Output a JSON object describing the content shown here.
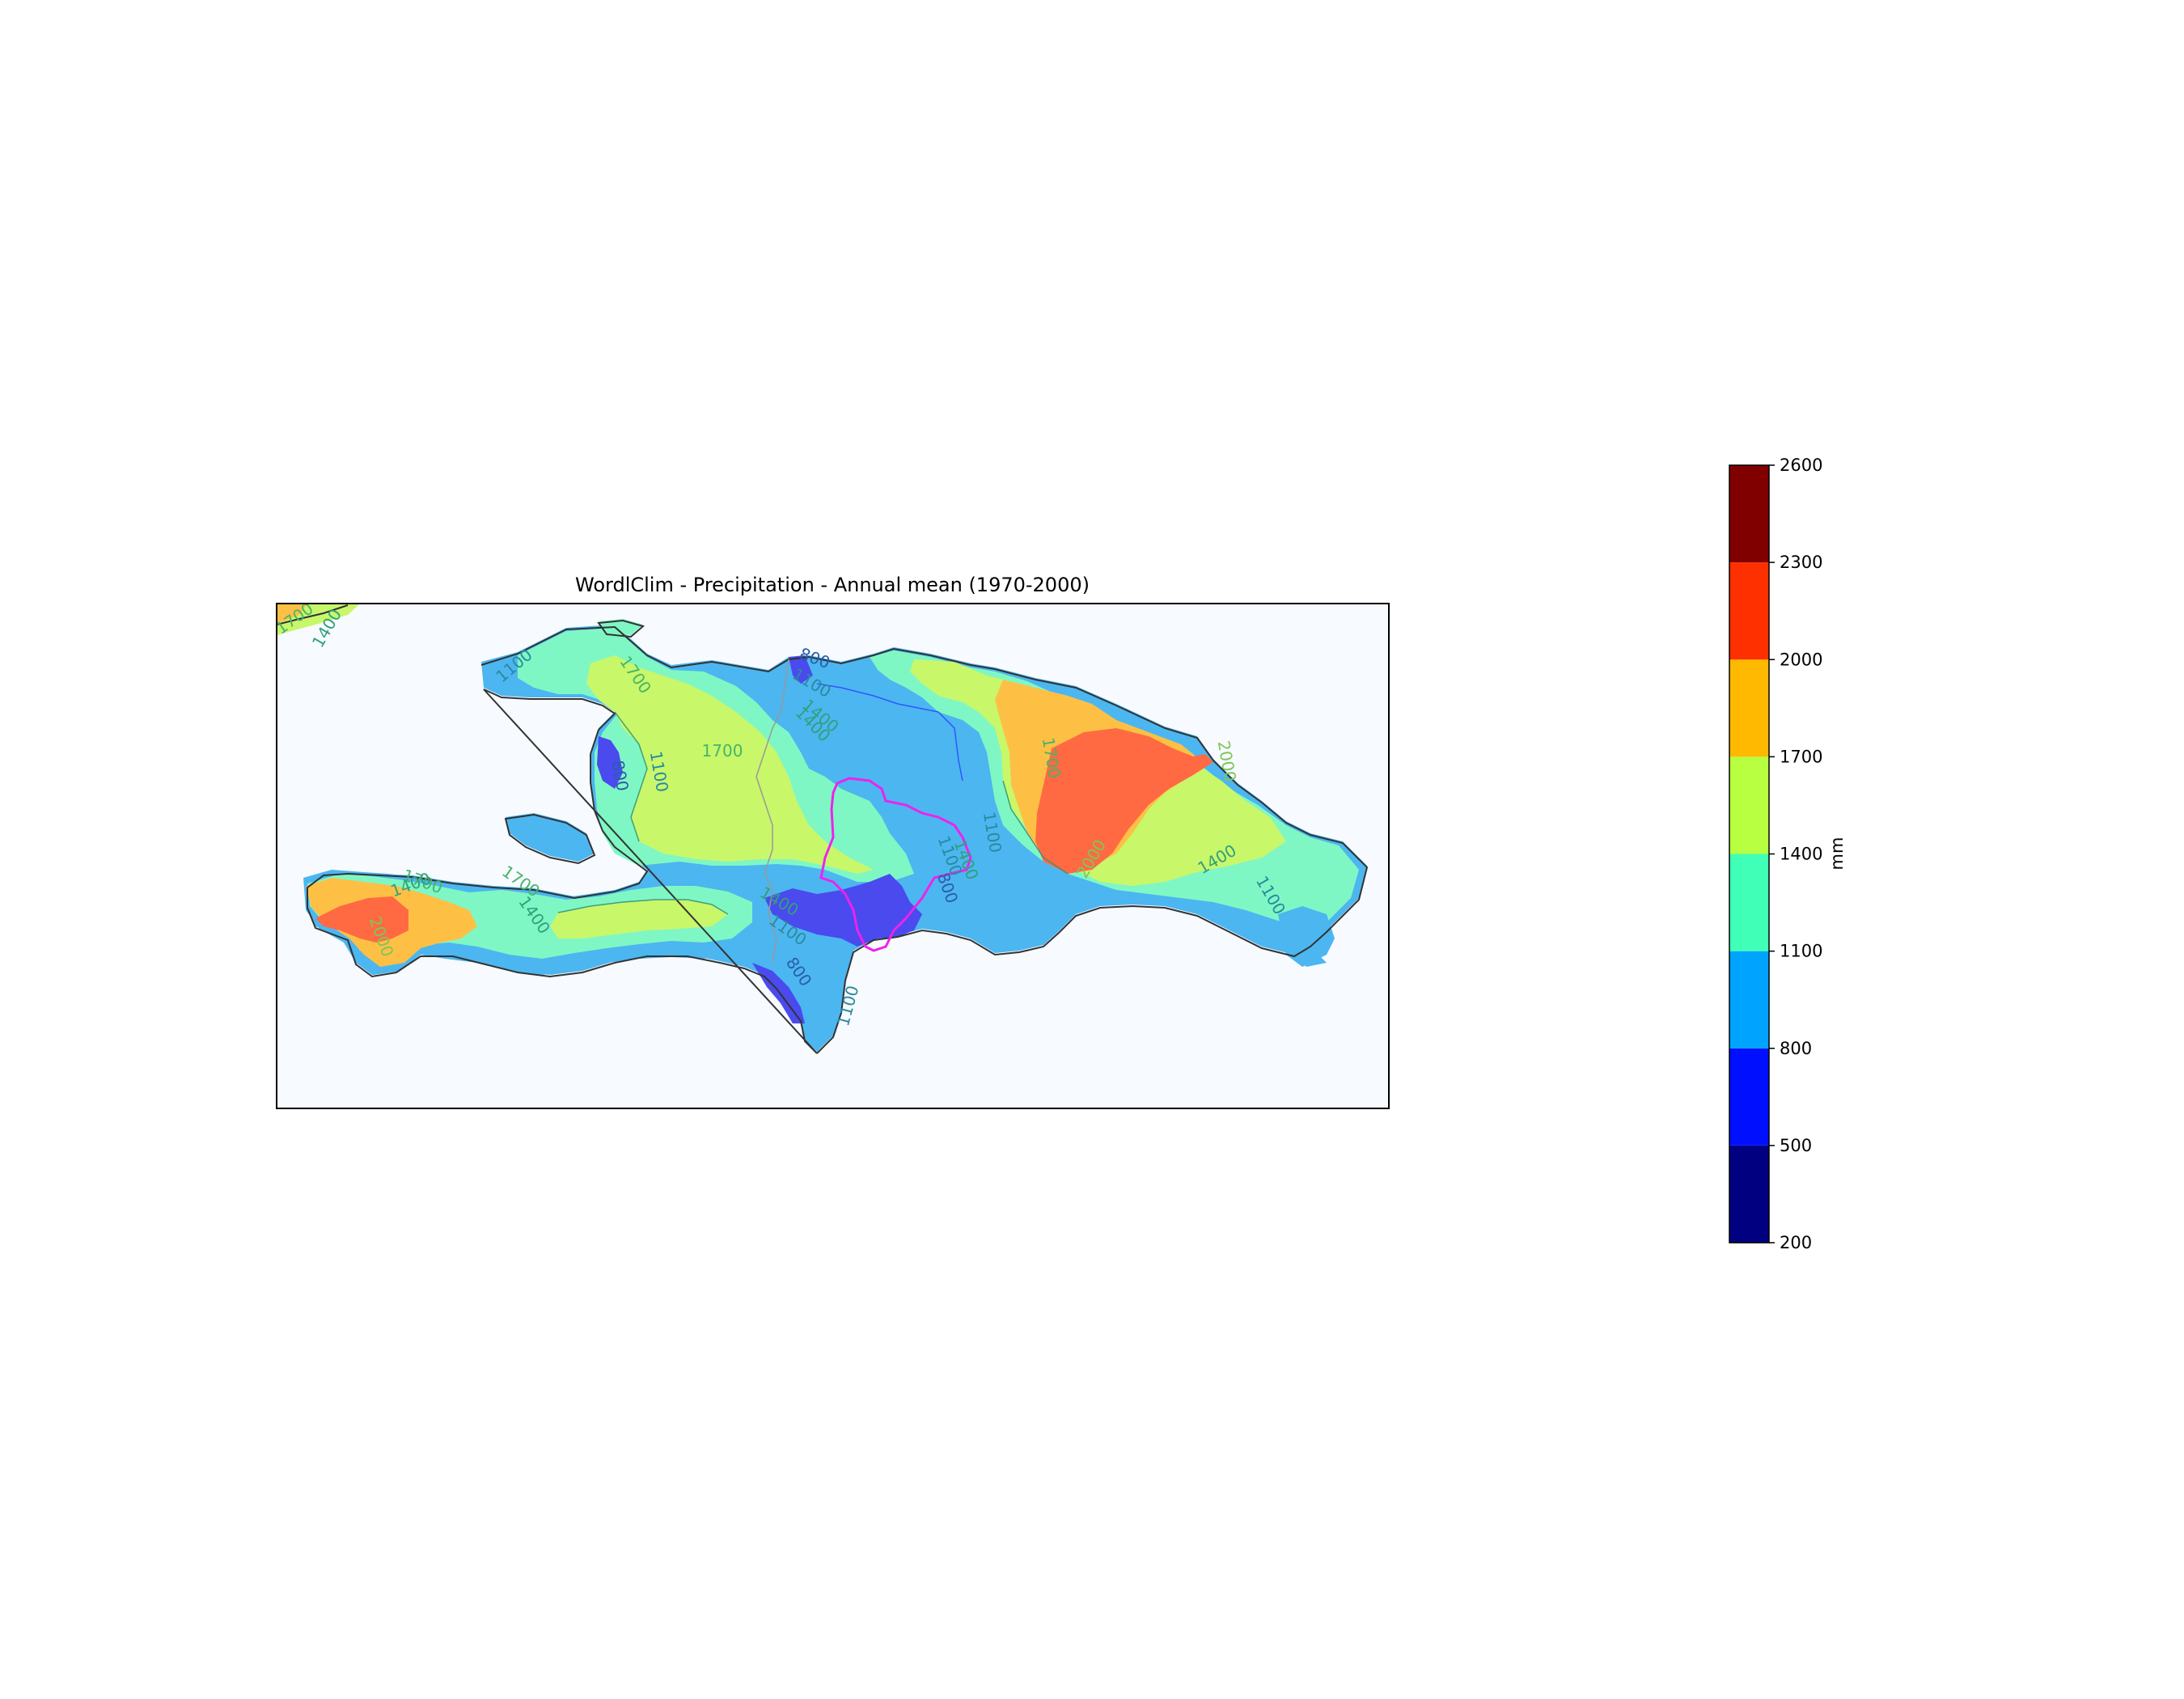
{
  "map": {
    "title": "WordlClim - Precipitation - Annual mean (1970-2000)",
    "background_color": "#f7fafe",
    "contour_labels": [
      {
        "text": "1700",
        "cls": "l1700"
      },
      {
        "text": "1400",
        "cls": "l1400"
      },
      {
        "text": "1100",
        "cls": "l1100"
      },
      {
        "text": "800",
        "cls": "l800"
      },
      {
        "text": "1700",
        "cls": "l1700"
      },
      {
        "text": "1100",
        "cls": "l1100"
      },
      {
        "text": "1400",
        "cls": "l1400"
      },
      {
        "text": "1700",
        "cls": "l1700"
      },
      {
        "text": "1100",
        "cls": "l1100"
      },
      {
        "text": "800",
        "cls": "l800"
      },
      {
        "text": "1100",
        "cls": "l1100"
      },
      {
        "text": "1400",
        "cls": "l1400"
      },
      {
        "text": "1700",
        "cls": "l1700"
      },
      {
        "text": "1400",
        "cls": "l1400"
      },
      {
        "text": "1100",
        "cls": "l1100"
      },
      {
        "text": "800",
        "cls": "l800"
      },
      {
        "text": "1400",
        "cls": "l1400"
      },
      {
        "text": "1700",
        "cls": "l1700"
      },
      {
        "text": "2000",
        "cls": "l2000"
      },
      {
        "text": "2000",
        "cls": "l2000"
      },
      {
        "text": "1400",
        "cls": "l1400"
      },
      {
        "text": "1100",
        "cls": "l1100"
      },
      {
        "text": "1100",
        "cls": "l1100"
      },
      {
        "text": "800",
        "cls": "l800"
      },
      {
        "text": "1100",
        "cls": "l1100"
      },
      {
        "text": "1700",
        "cls": "l1700"
      },
      {
        "text": "1400",
        "cls": "l1400"
      },
      {
        "text": "1400",
        "cls": "l1400"
      },
      {
        "text": "2000",
        "cls": "l2000"
      }
    ]
  },
  "colorbar": {
    "label": "mm",
    "ticks": [
      "200",
      "500",
      "800",
      "1100",
      "1400",
      "1700",
      "2000",
      "2300",
      "2600"
    ],
    "bands": [
      {
        "from": 200,
        "to": 500,
        "color": "#000080"
      },
      {
        "from": 500,
        "to": 800,
        "color": "#0010ff"
      },
      {
        "from": 800,
        "to": 1100,
        "color": "#00a4ff"
      },
      {
        "from": 1100,
        "to": 1400,
        "color": "#40ffb7"
      },
      {
        "from": 1400,
        "to": 1700,
        "color": "#b7ff40"
      },
      {
        "from": 1700,
        "to": 2000,
        "color": "#ffb900"
      },
      {
        "from": 2000,
        "to": 2300,
        "color": "#ff3000"
      },
      {
        "from": 2300,
        "to": 2600,
        "color": "#800000"
      }
    ]
  },
  "colors": {
    "p800": "#4a4aef",
    "p1100": "#4cb6f0",
    "p1400": "#7ff7c4",
    "p1700": "#c8f76a",
    "p2000": "#fdc045",
    "p2300": "#ff6a42",
    "basin_outline": "#ee22ee",
    "coast": "#333333"
  }
}
